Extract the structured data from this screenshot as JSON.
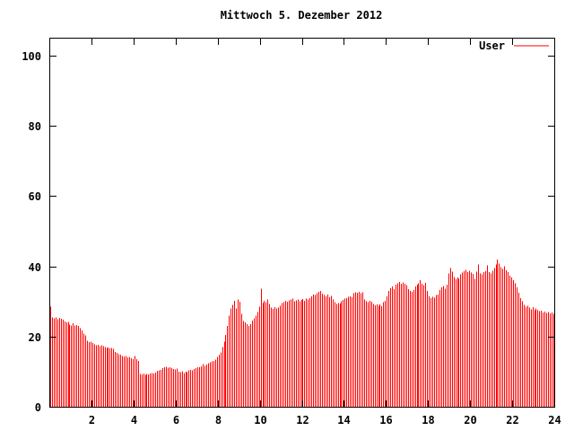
{
  "title": "Mittwoch 5. Dezember 2012",
  "legend": {
    "label": "User",
    "color": "#ff0000"
  },
  "colors": {
    "bars": "#ff0000",
    "axis": "#000000",
    "text": "#000000",
    "background": "#ffffff"
  },
  "chart_data": {
    "type": "bar",
    "title": "Mittwoch 5. Dezember 2012",
    "xlabel": "",
    "ylabel": "",
    "xlim": [
      0,
      24
    ],
    "ylim": [
      0,
      105
    ],
    "x_ticks": [
      2,
      4,
      6,
      8,
      10,
      12,
      14,
      16,
      18,
      20,
      22,
      24
    ],
    "y_ticks": [
      0,
      20,
      40,
      60,
      80,
      100
    ],
    "grid": false,
    "legend_position": "top-right",
    "sample_interval_minutes": 5,
    "series": [
      {
        "name": "User",
        "color": "#ff0000",
        "values": [
          28.5,
          25.5,
          25.2,
          25.4,
          25.0,
          25.3,
          25.1,
          24.8,
          24.3,
          24.0,
          24.2,
          23.4,
          23.2,
          23.8,
          23.1,
          23.3,
          23.0,
          22.4,
          21.8,
          20.8,
          20.3,
          18.8,
          18.4,
          18.6,
          18.2,
          17.8,
          17.5,
          17.6,
          17.3,
          17.5,
          17.2,
          17.0,
          16.8,
          16.9,
          16.6,
          16.8,
          16.5,
          15.6,
          15.3,
          15.0,
          14.8,
          14.5,
          14.3,
          14.4,
          14.1,
          14.2,
          13.8,
          13.6,
          14.4,
          13.5,
          13.1,
          9.3,
          9.2,
          9.4,
          9.1,
          9.3,
          9.2,
          9.4,
          9.6,
          9.5,
          9.7,
          10.2,
          10.4,
          10.5,
          11.0,
          11.2,
          11.4,
          11.1,
          11.3,
          11.0,
          10.8,
          10.6,
          10.9,
          10.0,
          9.8,
          10.1,
          9.6,
          10.0,
          9.9,
          10.3,
          10.5,
          10.4,
          10.8,
          11.0,
          11.2,
          11.3,
          11.5,
          12.2,
          11.6,
          12.0,
          12.4,
          12.7,
          12.9,
          13.1,
          13.4,
          14.2,
          14.8,
          15.5,
          17.0,
          18.5,
          20.5,
          23.0,
          26.0,
          28.0,
          29.0,
          30.2,
          28.0,
          30.6,
          29.9,
          26.5,
          24.4,
          24.0,
          23.5,
          23.0,
          23.5,
          24.5,
          25.2,
          26.0,
          27.0,
          28.5,
          33.6,
          29.5,
          30.2,
          29.8,
          30.6,
          29.3,
          28.2,
          27.9,
          28.4,
          28.0,
          28.3,
          28.8,
          29.5,
          29.8,
          30.2,
          29.9,
          30.3,
          30.6,
          30.8,
          30.0,
          30.3,
          30.6,
          30.1,
          30.4,
          30.7,
          30.2,
          30.8,
          30.5,
          31.0,
          31.5,
          32.0,
          31.8,
          32.4,
          32.7,
          33.0,
          32.2,
          31.8,
          31.4,
          32.0,
          31.2,
          31.6,
          30.5,
          29.8,
          29.3,
          29.5,
          29.4,
          30.0,
          30.4,
          30.8,
          31.0,
          31.3,
          31.5,
          31.2,
          32.4,
          32.6,
          32.5,
          32.7,
          32.3,
          32.6,
          30.5,
          30.0,
          29.8,
          30.2,
          29.9,
          29.3,
          28.9,
          29.1,
          28.8,
          29.2,
          28.6,
          29.8,
          30.2,
          31.5,
          33.0,
          33.8,
          34.3,
          33.5,
          34.8,
          35.2,
          35.5,
          35.0,
          35.4,
          35.1,
          34.7,
          33.5,
          33.0,
          32.7,
          33.2,
          34.3,
          34.8,
          35.2,
          36.0,
          35.0,
          34.6,
          35.3,
          33.0,
          31.5,
          31.0,
          31.3,
          31.1,
          31.8,
          32.0,
          33.2,
          34.0,
          34.4,
          33.6,
          34.8,
          38.0,
          39.5,
          38.5,
          37.0,
          36.3,
          36.8,
          36.5,
          37.7,
          38.2,
          38.6,
          39.0,
          38.4,
          38.8,
          38.2,
          37.9,
          36.4,
          38.5,
          40.6,
          38.0,
          37.7,
          38.3,
          38.6,
          40.3,
          38.4,
          38.0,
          38.8,
          39.5,
          40.5,
          41.9,
          40.8,
          39.8,
          39.2,
          40.0,
          38.9,
          38.3,
          37.3,
          36.8,
          36.0,
          35.2,
          34.0,
          32.5,
          31.0,
          30.0,
          29.0,
          28.5,
          28.8,
          28.2,
          27.8,
          28.4,
          27.5,
          28.0,
          27.6,
          27.2,
          27.4,
          26.9,
          27.1,
          26.7,
          27.0,
          26.6,
          26.8,
          26.5
        ]
      }
    ]
  }
}
